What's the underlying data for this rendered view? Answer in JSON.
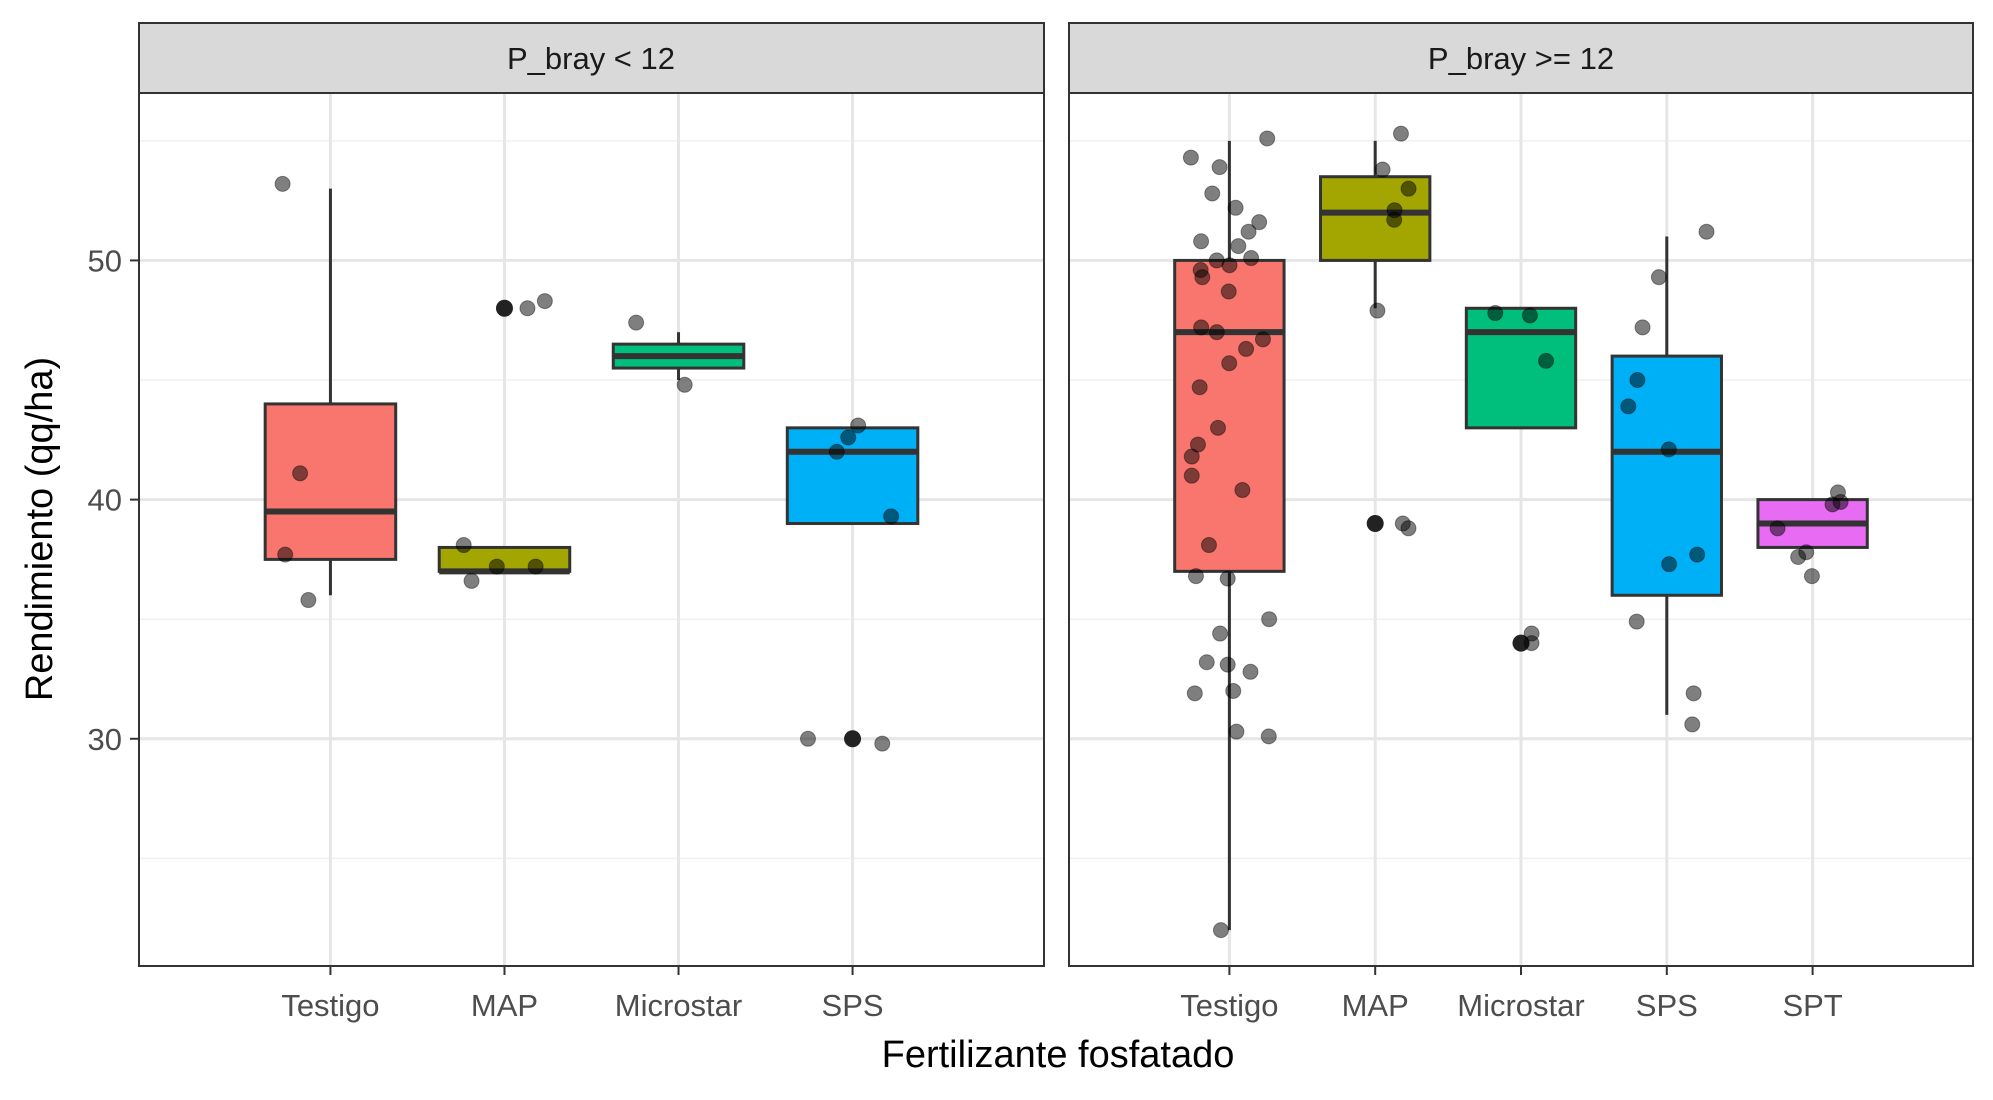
{
  "chart_data": {
    "type": "box",
    "xlabel": "Fertilizante fosfatado",
    "ylabel": "Rendimiento (qq/ha)",
    "ylim": [
      20.5,
      57
    ],
    "yticks": [
      30,
      40,
      50
    ],
    "grid": true,
    "colors": {
      "Testigo": "#F8766D",
      "MAP": "#A3A500",
      "Microstar": "#00BF7D",
      "SPS": "#00B0F6",
      "SPT": "#E76BF3"
    },
    "panels": [
      {
        "label": "P_bray < 12",
        "categories": [
          "Testigo",
          "MAP",
          "Microstar",
          "SPS"
        ],
        "boxes": [
          {
            "category": "Testigo",
            "min": 36,
            "q1": 37.5,
            "median": 39.5,
            "q3": 44,
            "max": 53,
            "outliers": [],
            "points": [
              53.2,
              41.1,
              37.7,
              35.8
            ]
          },
          {
            "category": "MAP",
            "min": 37,
            "q1": 37,
            "median": 37,
            "q3": 38,
            "max": 38,
            "outliers": [
              48
            ],
            "points": [
              48.3,
              48.0,
              38.1,
              37.2,
              37.2,
              36.6
            ]
          },
          {
            "category": "Microstar",
            "min": 45,
            "q1": 45.5,
            "median": 46,
            "q3": 46.5,
            "max": 47,
            "outliers": [],
            "points": [
              47.4,
              44.8
            ]
          },
          {
            "category": "SPS",
            "min": 39,
            "q1": 39,
            "median": 42,
            "q3": 43,
            "max": 43,
            "outliers": [
              30
            ],
            "points": [
              43.1,
              42.6,
              42.0,
              39.3,
              30.0,
              29.8
            ]
          }
        ]
      },
      {
        "label": "P_bray >= 12",
        "categories": [
          "Testigo",
          "MAP",
          "Microstar",
          "SPS",
          "SPT"
        ],
        "boxes": [
          {
            "category": "Testigo",
            "min": 22,
            "q1": 37,
            "median": 47,
            "q3": 50,
            "max": 55,
            "outliers": [],
            "points": [
              55.1,
              54.3,
              53.9,
              52.8,
              52.2,
              51.6,
              51.2,
              50.8,
              50.6,
              50.1,
              50.0,
              49.8,
              49.6,
              49.3,
              48.7,
              47.2,
              47.0,
              46.7,
              46.3,
              45.7,
              44.7,
              43.0,
              42.3,
              41.8,
              41.0,
              40.4,
              38.1,
              36.8,
              36.7,
              35.0,
              34.4,
              33.2,
              33.1,
              32.8,
              32.0,
              31.9,
              30.3,
              30.1,
              22.0
            ]
          },
          {
            "category": "MAP",
            "min": 48,
            "q1": 50,
            "median": 52,
            "q3": 53.5,
            "max": 55,
            "outliers": [
              39
            ],
            "points": [
              55.3,
              53.8,
              53.0,
              52.1,
              51.7,
              47.9,
              39.0,
              38.8
            ]
          },
          {
            "category": "Microstar",
            "min": 43,
            "q1": 43,
            "median": 47,
            "q3": 48,
            "max": 48,
            "outliers": [
              34
            ],
            "points": [
              47.8,
              47.7,
              45.8,
              34.4,
              34.0
            ]
          },
          {
            "category": "SPS",
            "min": 31,
            "q1": 36,
            "median": 42,
            "q3": 46,
            "max": 51,
            "outliers": [],
            "points": [
              51.2,
              49.3,
              47.2,
              45.0,
              43.9,
              42.1,
              37.7,
              37.3,
              34.9,
              31.9,
              30.6
            ]
          },
          {
            "category": "SPT",
            "min": 38,
            "q1": 38,
            "median": 39,
            "q3": 40,
            "max": 40,
            "outliers": [],
            "points": [
              40.3,
              39.9,
              39.8,
              38.8,
              37.8,
              37.6,
              36.8
            ]
          }
        ]
      }
    ]
  }
}
